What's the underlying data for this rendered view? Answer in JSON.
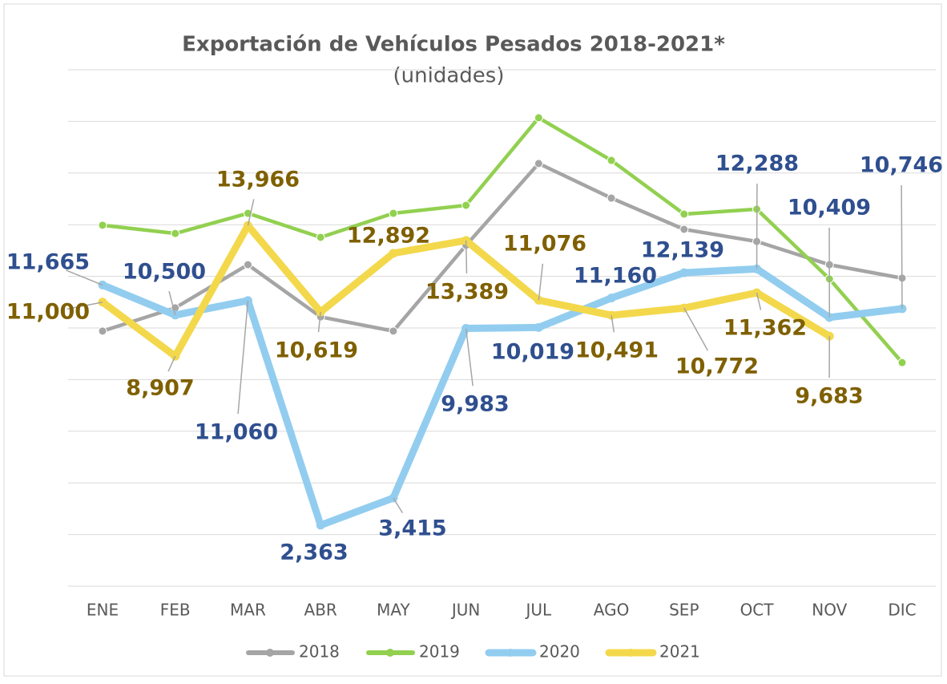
{
  "chart_data": {
    "type": "line",
    "title": "Exportación de Vehículos Pesados 2018-2021*",
    "subtitle": "(unidades)",
    "categories": [
      "ENE",
      "FEB",
      "MAR",
      "ABR",
      "MAY",
      "JUN",
      "JUL",
      "AGO",
      "SEP",
      "OCT",
      "NOV",
      "DIC"
    ],
    "ylim": [
      0,
      20000
    ],
    "yticks": [
      0,
      2000,
      4000,
      6000,
      8000,
      10000,
      12000,
      14000,
      16000,
      18000,
      20000
    ],
    "grid": true,
    "legend": "bottom",
    "series": [
      {
        "name": "2018",
        "color": "#a5a5a5",
        "values": [
          9880,
          10780,
          12450,
          10430,
          9880,
          13200,
          16370,
          15030,
          13820,
          13350,
          12450,
          11930
        ]
      },
      {
        "name": "2019",
        "color": "#92d050",
        "values": [
          13980,
          13660,
          14440,
          13510,
          14440,
          14750,
          18140,
          16490,
          14410,
          14600,
          11900,
          8660
        ]
      },
      {
        "name": "2020",
        "color": "#92cdef",
        "label_color": "#2f4f8f",
        "values": [
          11665,
          10500,
          11060,
          2363,
          3415,
          9983,
          10019,
          11160,
          12139,
          12288,
          10409,
          10746
        ],
        "value_labels": [
          "11,665",
          "10,500",
          "11,060",
          "2,363",
          "3,415",
          "9,983",
          "10,019",
          "11,160",
          "12,139",
          "12,288",
          "10,409",
          "10,746"
        ]
      },
      {
        "name": "2021",
        "color": "#f3d84c",
        "label_color": "#7f6000",
        "values": [
          11000,
          8907,
          13966,
          10619,
          12892,
          13389,
          11076,
          10491,
          10772,
          11362,
          9683,
          null
        ],
        "value_labels": [
          "11,000",
          "8,907",
          "13,966",
          "10,619",
          "12,892",
          "13,389",
          "11,076",
          "10,491",
          "10,772",
          "11,362",
          "9,683",
          null
        ]
      }
    ]
  }
}
